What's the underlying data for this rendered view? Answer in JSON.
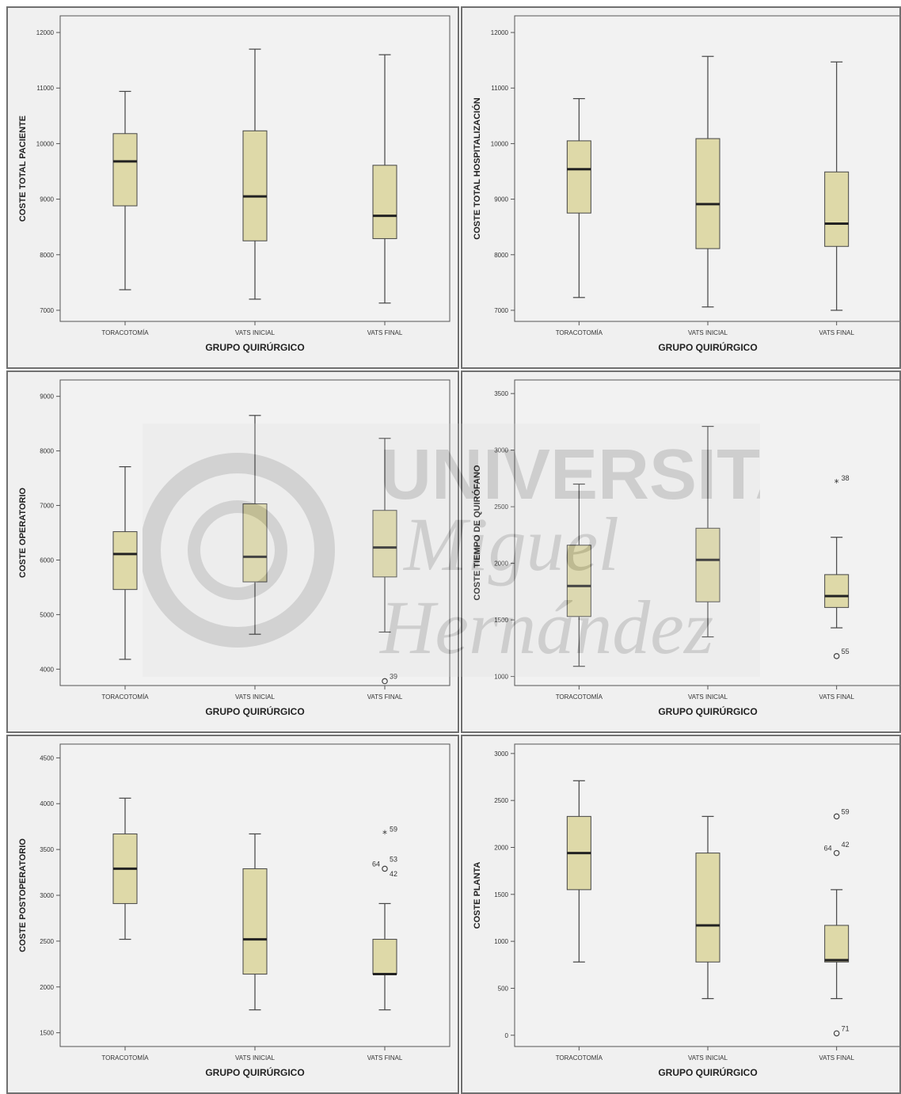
{
  "chart_data": [
    {
      "type": "box",
      "ylabel": "COSTE TOTAL PACIENTE",
      "xlabel": "GRUPO QUIRÚRGICO",
      "ylim": [
        6800,
        12300
      ],
      "yticks": [
        7000,
        8000,
        9000,
        10000,
        11000,
        12000
      ],
      "categories": [
        "TORACOTOMÍA",
        "VATS INICIAL",
        "VATS FINAL"
      ],
      "boxes": [
        {
          "min": 7370,
          "q1": 8880,
          "median": 9680,
          "q3": 10180,
          "max": 10940
        },
        {
          "min": 7200,
          "q1": 8250,
          "median": 9050,
          "q3": 10230,
          "max": 11700
        },
        {
          "min": 7130,
          "q1": 8290,
          "median": 8700,
          "q3": 9610,
          "max": 11600
        }
      ],
      "outliers": []
    },
    {
      "type": "box",
      "ylabel": "COSTE TOTAL HOSPITALIZACIÓN",
      "xlabel": "GRUPO QUIRÚRGICO",
      "ylim": [
        6800,
        12300
      ],
      "yticks": [
        7000,
        8000,
        9000,
        10000,
        11000,
        12000
      ],
      "categories": [
        "TORACOTOMÍA",
        "VATS INICIAL",
        "VATS FINAL"
      ],
      "boxes": [
        {
          "min": 7230,
          "q1": 8750,
          "median": 9540,
          "q3": 10050,
          "max": 10810
        },
        {
          "min": 7060,
          "q1": 8110,
          "median": 8910,
          "q3": 10090,
          "max": 11570
        },
        {
          "min": 7000,
          "q1": 8150,
          "median": 8560,
          "q3": 9490,
          "max": 11470
        }
      ],
      "outliers": []
    },
    {
      "type": "box",
      "ylabel": "COSTE OPERATORIO",
      "xlabel": "GRUPO QUIRÚRGICO",
      "ylim": [
        3700,
        9300
      ],
      "yticks": [
        4000,
        5000,
        6000,
        7000,
        8000,
        9000
      ],
      "categories": [
        "TORACOTOMÍA",
        "VATS INICIAL",
        "VATS FINAL"
      ],
      "boxes": [
        {
          "min": 4180,
          "q1": 5460,
          "median": 6110,
          "q3": 6520,
          "max": 7710
        },
        {
          "min": 4640,
          "q1": 5600,
          "median": 6060,
          "q3": 7030,
          "max": 8650
        },
        {
          "min": 4680,
          "q1": 5690,
          "median": 6230,
          "q3": 6910,
          "max": 8230
        }
      ],
      "outliers": [
        {
          "box": 2,
          "value": 3780,
          "label": "39",
          "marker": "circle"
        }
      ]
    },
    {
      "type": "box",
      "ylabel": "COSTE TIEMPO DE QUIRÓFANO",
      "xlabel": "GRUPO QUIRÚRGICO",
      "ylim": [
        920,
        3620
      ],
      "yticks": [
        1000,
        1500,
        2000,
        2500,
        3000,
        3500
      ],
      "categories": [
        "TORACOTOMÍA",
        "VATS INICIAL",
        "VATS FINAL"
      ],
      "boxes": [
        {
          "min": 1090,
          "q1": 1530,
          "median": 1800,
          "q3": 2160,
          "max": 2700
        },
        {
          "min": 1350,
          "q1": 1660,
          "median": 2030,
          "q3": 2310,
          "max": 3210
        },
        {
          "min": 1430,
          "q1": 1610,
          "median": 1710,
          "q3": 1900,
          "max": 2230
        }
      ],
      "outliers": [
        {
          "box": 2,
          "value": 2710,
          "label": "38",
          "marker": "star"
        },
        {
          "box": 2,
          "value": 1180,
          "label": "55",
          "marker": "circle"
        }
      ]
    },
    {
      "type": "box",
      "ylabel": "COSTE POSTOPERATORIO",
      "xlabel": "GRUPO QUIRÚRGICO",
      "ylim": [
        1350,
        4650
      ],
      "yticks": [
        1500,
        2000,
        2500,
        3000,
        3500,
        4000,
        4500
      ],
      "categories": [
        "TORACOTOMÍA",
        "VATS INICIAL",
        "VATS FINAL"
      ],
      "boxes": [
        {
          "min": 2520,
          "q1": 2910,
          "median": 3290,
          "q3": 3670,
          "max": 4060
        },
        {
          "min": 1750,
          "q1": 2140,
          "median": 2520,
          "q3": 3290,
          "max": 3670
        },
        {
          "min": 1750,
          "q1": 2140,
          "median": 2140,
          "q3": 2520,
          "max": 2910
        }
      ],
      "outliers": [
        {
          "box": 2,
          "value": 3670,
          "label": "59",
          "marker": "star"
        },
        {
          "box": 2,
          "value": 3290,
          "label": "64",
          "marker": "circle",
          "side": "left"
        },
        {
          "box": 2,
          "value": 3340,
          "label": "53",
          "marker": "none"
        },
        {
          "box": 2,
          "value": 3180,
          "label": "42",
          "marker": "none"
        }
      ]
    },
    {
      "type": "box",
      "ylabel": "COSTE PLANTA",
      "xlabel": "GRUPO QUIRÚRGICO",
      "ylim": [
        -120,
        3100
      ],
      "yticks": [
        0,
        500,
        1000,
        1500,
        2000,
        2500,
        3000
      ],
      "categories": [
        "TORACOTOMÍA",
        "VATS INICIAL",
        "VATS FINAL"
      ],
      "boxes": [
        {
          "min": 780,
          "q1": 1550,
          "median": 1940,
          "q3": 2330,
          "max": 2710
        },
        {
          "min": 390,
          "q1": 780,
          "median": 1170,
          "q3": 1940,
          "max": 2330
        },
        {
          "min": 390,
          "q1": 780,
          "median": 800,
          "q3": 1170,
          "max": 1550
        }
      ],
      "outliers": [
        {
          "box": 2,
          "value": 2330,
          "label": "59",
          "marker": "circle"
        },
        {
          "box": 2,
          "value": 1940,
          "label": "64",
          "marker": "circle",
          "side": "left"
        },
        {
          "box": 2,
          "value": 1980,
          "label": "42",
          "marker": "none"
        },
        {
          "box": 2,
          "value": 20,
          "label": "71",
          "marker": "circle"
        }
      ]
    }
  ],
  "watermark": {
    "line1": "UNIVERSITAS",
    "line2": "Miguel",
    "line3": "Hernández"
  }
}
